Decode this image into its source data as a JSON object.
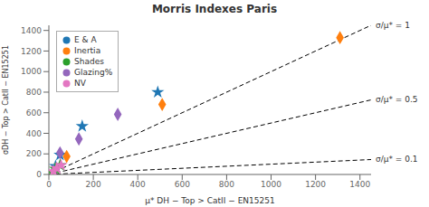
{
  "chart_data": {
    "type": "scatter",
    "title": "Morris Indexes Paris",
    "x_label": "μ* DH − Top > CatII − EN15251",
    "y_label": "σDH − Top > CatII − EN15251",
    "xlim": [
      0,
      1450
    ],
    "ylim": [
      0,
      1450
    ],
    "xticks": [
      0,
      200,
      400,
      600,
      800,
      1000,
      1200,
      1400
    ],
    "yticks": [
      0,
      200,
      400,
      600,
      800,
      1000,
      1200,
      1400
    ],
    "legend": "upper left",
    "grid": false,
    "series": [
      {
        "name": "E & A",
        "color": "#1f77b4",
        "marker": "star",
        "x": [
          30,
          50,
          150,
          490
        ],
        "y": [
          80,
          190,
          470,
          800
        ]
      },
      {
        "name": "Inertia",
        "color": "#ff7f0e",
        "marker": "diamond",
        "x": [
          80,
          510,
          1310
        ],
        "y": [
          175,
          680,
          1330
        ]
      },
      {
        "name": "Shades",
        "color": "#2ca02c",
        "marker": "star",
        "x": [
          15,
          30,
          50
        ],
        "y": [
          20,
          55,
          90
        ]
      },
      {
        "name": "Glazing%",
        "color": "#9467bd",
        "marker": "diamond",
        "x": [
          50,
          135,
          310
        ],
        "y": [
          210,
          345,
          585
        ]
      },
      {
        "name": "NV",
        "color": "#e377c2",
        "marker": "star",
        "x": [
          20,
          35,
          55
        ],
        "y": [
          30,
          60,
          90
        ]
      }
    ],
    "reference_lines": [
      {
        "slope": 1.0,
        "label": "σ/μ* = 1",
        "color": "#000000",
        "line_style": "dashed"
      },
      {
        "slope": 0.5,
        "label": "σ/μ* = 0.5",
        "color": "#000000",
        "line_style": "dashed"
      },
      {
        "slope": 0.1,
        "label": "σ/μ* = 0.1",
        "color": "#000000",
        "line_style": "dashed"
      }
    ]
  }
}
